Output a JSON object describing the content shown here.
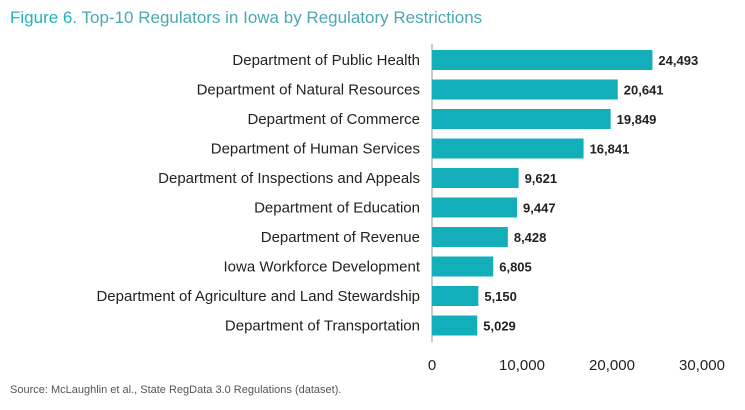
{
  "figure": {
    "label": "Figure 6.",
    "title": "Top-10 Regulators in Iowa by Regulatory Restrictions",
    "source": "Source: McLaughlin et al., State RegData 3.0 Regulations (dataset)."
  },
  "chart_data": {
    "type": "bar",
    "orientation": "horizontal",
    "categories": [
      "Department of Public Health",
      "Department of Natural Resources",
      "Department of Commerce",
      "Department of Human Services",
      "Department of Inspections and Appeals",
      "Department of Education",
      "Department of Revenue",
      "Iowa Workforce Development",
      "Department of Agriculture and Land Stewardship",
      "Department of Transportation"
    ],
    "values": [
      24493,
      20641,
      19849,
      16841,
      9621,
      9447,
      8428,
      6805,
      5150,
      5029
    ],
    "value_labels": [
      "24,493",
      "20,641",
      "19,849",
      "16,841",
      "9,621",
      "9,447",
      "8,428",
      "6,805",
      "5,150",
      "5,029"
    ],
    "xlim": [
      0,
      30000
    ],
    "x_ticks": [
      0,
      10000,
      20000,
      30000
    ],
    "x_tick_labels": [
      "0",
      "10,000",
      "20,000",
      "30,000"
    ],
    "bar_color": "#12afbb",
    "grid": false
  }
}
